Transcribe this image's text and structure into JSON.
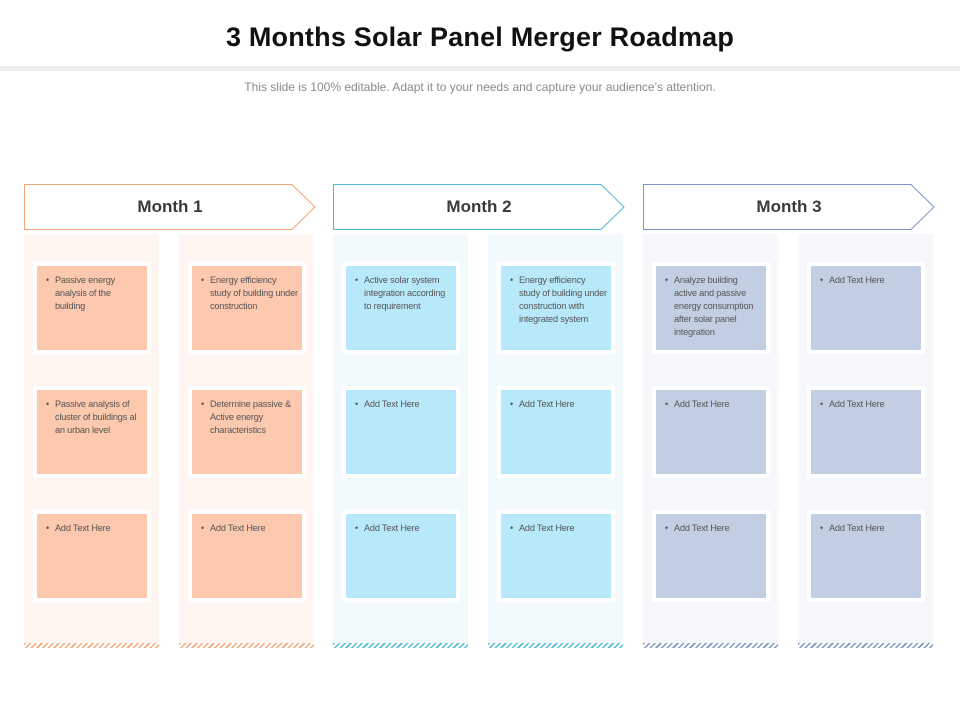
{
  "page": {
    "title": "3 Months Solar Panel Merger  Roadmap",
    "subtitle": "This slide is 100% editable. Adapt it to your needs and capture your audience’s attention."
  },
  "months": [
    {
      "label": "Month 1",
      "accent": "#f2a678",
      "card_color": "#fcc8ae",
      "column_bg": "#fff5f1",
      "columns": [
        {
          "items": [
            "Passive energy analysis of the building",
            "Passive analysis of cluster of buildings al an urban level",
            "Add Text Here"
          ]
        },
        {
          "items": [
            "Energy efficiency study of building under construction",
            "Determine passive & Active energy characteristics",
            "Add Text Here"
          ]
        }
      ]
    },
    {
      "label": "Month 2",
      "accent": "#4dbbd8",
      "card_color": "#b8e9fb",
      "column_bg": "#f2fafd",
      "columns": [
        {
          "items": [
            "Active solar system integration according to requirement",
            "Add Text Here",
            "Add Text Here"
          ]
        },
        {
          "items": [
            "Energy efficiency study of building under construction with integrated system",
            "Add Text Here",
            "Add Text Here"
          ]
        }
      ]
    },
    {
      "label": "Month 3",
      "accent": "#7c95c4",
      "card_color": "#c2cfe2",
      "column_bg": "#f6f7fa",
      "columns": [
        {
          "items": [
            "Analyze building active and passive energy consumption after solar panel integration",
            "Add Text Here",
            "Add Text Here"
          ]
        },
        {
          "items": [
            "Add Text Here",
            "Add Text Here",
            "Add Text Here"
          ]
        }
      ]
    }
  ],
  "bullet_glyph": "•"
}
